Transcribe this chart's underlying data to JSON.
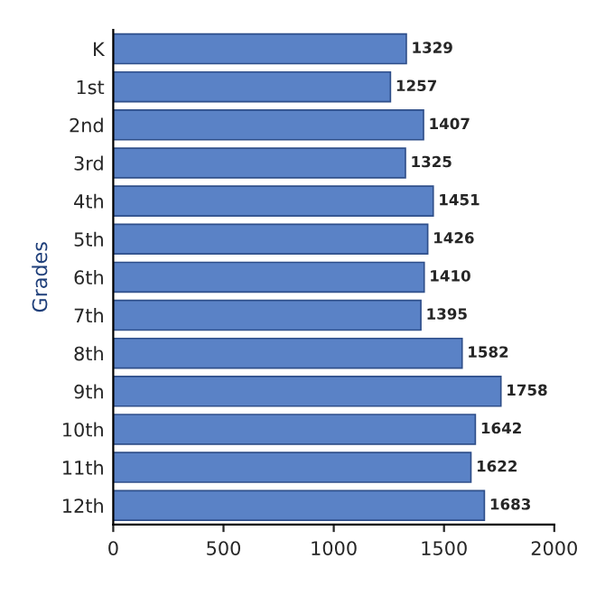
{
  "chart_data": {
    "type": "bar",
    "orientation": "horizontal",
    "ylabel": "Grades",
    "categories": [
      "K",
      "1st",
      "2nd",
      "3rd",
      "4th",
      "5th",
      "6th",
      "7th",
      "8th",
      "9th",
      "10th",
      "11th",
      "12th"
    ],
    "values": [
      1329,
      1257,
      1407,
      1325,
      1451,
      1426,
      1410,
      1395,
      1582,
      1758,
      1642,
      1622,
      1683
    ],
    "color": "#5a82c6",
    "xlim": [
      0,
      2000
    ],
    "xticks": [
      0,
      500,
      1000,
      1500,
      2000
    ],
    "data_labels": true,
    "grid": false,
    "legend": false
  }
}
